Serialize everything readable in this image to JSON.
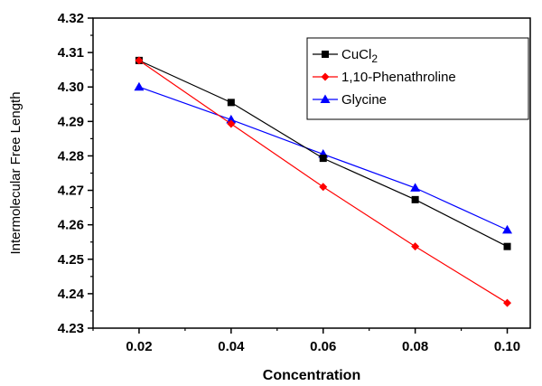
{
  "chart_data": {
    "type": "line",
    "title": "",
    "xlabel": "Concentration",
    "ylabel": "Intermolecular Free Length",
    "xlim": [
      0.01,
      0.105
    ],
    "ylim": [
      4.23,
      4.32
    ],
    "xticks": [
      "0.02",
      "0.04",
      "0.06",
      "0.08",
      "0.10"
    ],
    "xtick_values": [
      0.02,
      0.04,
      0.06,
      0.08,
      0.1
    ],
    "yticks": [
      "4.23",
      "4.24",
      "4.25",
      "4.26",
      "4.27",
      "4.28",
      "4.29",
      "4.30",
      "4.31",
      "4.32"
    ],
    "ytick_values": [
      4.23,
      4.24,
      4.25,
      4.26,
      4.27,
      4.28,
      4.29,
      4.3,
      4.31,
      4.32
    ],
    "x": [
      0.02,
      0.04,
      0.06,
      0.08,
      0.1
    ],
    "series": [
      {
        "name": "CuCl",
        "name_sub": "2",
        "color": "#000000",
        "marker": "square",
        "values": [
          4.3077,
          4.2955,
          4.2793,
          4.2673,
          4.2537
        ]
      },
      {
        "name": "1,10-Phenathroline",
        "color": "#ff0000",
        "marker": "diamond",
        "values": [
          4.3077,
          4.2893,
          4.271,
          4.2537,
          4.2373
        ]
      },
      {
        "name": "Glycine",
        "color": "#0000ff",
        "marker": "triangle",
        "values": [
          4.3,
          4.2905,
          4.2805,
          4.2707,
          4.2585
        ]
      }
    ],
    "grid": false,
    "legend_position": "top-right"
  }
}
